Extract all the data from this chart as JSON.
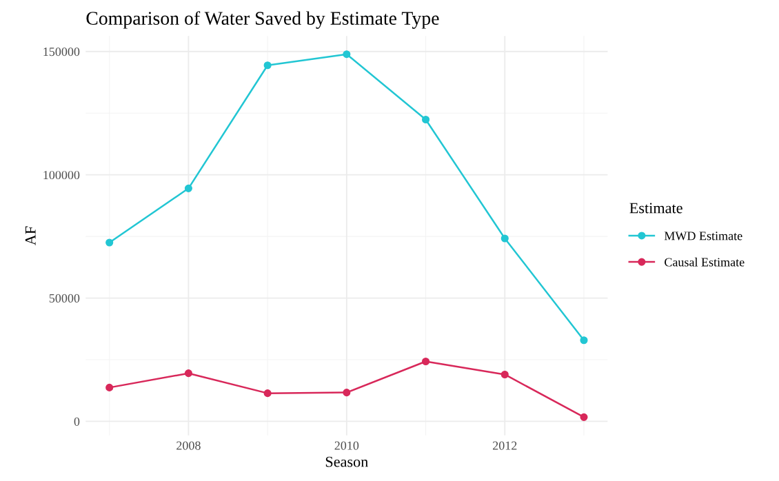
{
  "chart_data": {
    "type": "line",
    "title": "Comparison of Water Saved by Estimate Type",
    "xlabel": "Season",
    "ylabel": "AF",
    "legend_title": "Estimate",
    "x": [
      2007,
      2008,
      2009,
      2010,
      2011,
      2012,
      2013
    ],
    "series": [
      {
        "name": "MWD Estimate",
        "color": "#22c6d3",
        "values": [
          72500,
          94500,
          144400,
          148900,
          122400,
          74200,
          32900
        ]
      },
      {
        "name": "Causal Estimate",
        "color": "#d8285a",
        "values": [
          13700,
          19500,
          11400,
          11700,
          24300,
          19000,
          1700
        ]
      }
    ],
    "xlim": [
      2006.7,
      2013.3
    ],
    "xticks": [
      2008,
      2010,
      2012
    ],
    "ylim": [
      -5660,
      156260
    ],
    "yticks": [
      0,
      50000,
      100000,
      150000
    ],
    "grid": true,
    "legend": "right",
    "marker": "circle",
    "line_style": "solid"
  }
}
